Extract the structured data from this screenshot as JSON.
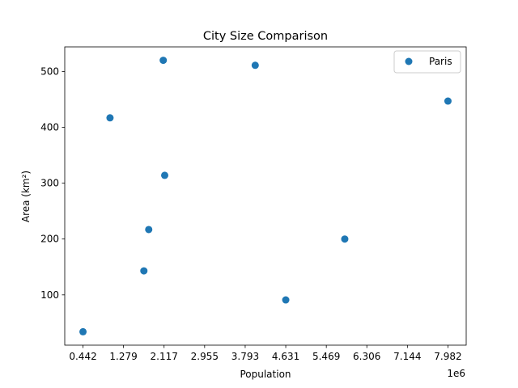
{
  "chart_data": {
    "type": "scatter",
    "title": "City Size Comparison",
    "xlabel": "Population",
    "ylabel": "Area (km²)",
    "x_multiplier_label": "1e6",
    "x_ticks": [
      0.442,
      1.279,
      2.117,
      2.955,
      3.793,
      4.631,
      5.469,
      6.306,
      7.144,
      7.982
    ],
    "x_tick_labels": [
      "0.442",
      "1.279",
      "2.117",
      "2.955",
      "3.793",
      "4.631",
      "5.469",
      "6.306",
      "7.144",
      "7.982"
    ],
    "y_ticks": [
      100,
      200,
      300,
      400,
      500
    ],
    "y_tick_labels": [
      "100",
      "200",
      "300",
      "400",
      "500"
    ],
    "xlim": [
      0.065,
      8.359
    ],
    "ylim": [
      10,
      544
    ],
    "grid": false,
    "legend": {
      "placement": "top-right",
      "entries": [
        "Paris"
      ]
    },
    "series": [
      {
        "name": "Paris",
        "color": "#1f77b4",
        "points": [
          {
            "x": 0.442,
            "y": 34
          },
          {
            "x": 1.0,
            "y": 417
          },
          {
            "x": 1.7,
            "y": 143
          },
          {
            "x": 1.8,
            "y": 217
          },
          {
            "x": 2.1,
            "y": 520
          },
          {
            "x": 2.13,
            "y": 314
          },
          {
            "x": 4.0,
            "y": 511
          },
          {
            "x": 4.631,
            "y": 91
          },
          {
            "x": 5.85,
            "y": 200
          },
          {
            "x": 7.982,
            "y": 447
          }
        ]
      }
    ]
  }
}
